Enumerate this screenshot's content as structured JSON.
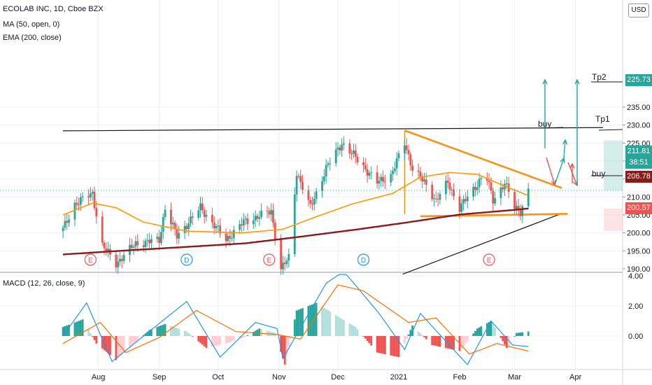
{
  "header": {
    "symbol_line": "ECOLAB INC, 1D, Cboe BZX",
    "ma_line": "MA (50, open, 0)",
    "ema_line": "EMA (200, close)",
    "currency": "USD"
  },
  "macd_header": "MACD (12, 26, close, 9)",
  "price_tags": {
    "tp2": "225.73",
    "last": "211.81",
    "countdown": "38:51",
    "ema": "206.78",
    "stop": "200.57"
  },
  "annotations": {
    "tp2": "Tp2",
    "tp1": "Tp1",
    "buy_upper": "buy",
    "buy_lower": "buy"
  },
  "colors": {
    "up": "#26a69a",
    "down": "#ef5350",
    "ma50": "#ff9800",
    "ema200": "#8b1a1a",
    "trend": "#f7931a",
    "macd_line": "#2196f3",
    "signal_line": "#ff6d00",
    "tag_tp2": "#26a69a",
    "tag_last": "#26a69a",
    "tag_ema": "#b71c1c",
    "tag_stop": "#ef5350"
  },
  "chart_data": [
    {
      "type": "candlestick",
      "title": "ECOLAB INC, 1D, Cboe BZX",
      "ylim": [
        188.5,
        240
      ],
      "y_ticks": [
        "190.00",
        "195.00",
        "200.00",
        "205.00",
        "210.00",
        "215.00",
        "220.00",
        "225.00",
        "230.00",
        "235.00"
      ],
      "x_ticks": [
        "Aug",
        "Sep",
        "Oct",
        "Nov",
        "Dec",
        "2021",
        "Feb",
        "Mar",
        "Apr"
      ],
      "price_key_points": [
        {
          "date": "Jul 14",
          "price": 201
        },
        {
          "date": "Jul 20",
          "price": 208
        },
        {
          "date": "Jul 29",
          "price": 211
        },
        {
          "date": "Aug 3",
          "price": 196.5
        },
        {
          "date": "Aug 10",
          "price": 191.5
        },
        {
          "date": "Aug 20",
          "price": 197
        },
        {
          "date": "Sep 1",
          "price": 198
        },
        {
          "date": "Sep 4",
          "price": 207
        },
        {
          "date": "Sep 10",
          "price": 199
        },
        {
          "date": "Sep 22",
          "price": 207
        },
        {
          "date": "Oct 5",
          "price": 198
        },
        {
          "date": "Oct 14",
          "price": 203
        },
        {
          "date": "Oct 28",
          "price": 206
        },
        {
          "date": "Nov 2",
          "price": 190
        },
        {
          "date": "Nov 6",
          "price": 193
        },
        {
          "date": "Nov 10",
          "price": 217
        },
        {
          "date": "Nov 17",
          "price": 207
        },
        {
          "date": "Nov 25",
          "price": 218
        },
        {
          "date": "Dec 3",
          "price": 225
        },
        {
          "date": "Dec 10",
          "price": 221
        },
        {
          "date": "Dec 21",
          "price": 214
        },
        {
          "date": "Dec 28",
          "price": 216
        },
        {
          "date": "Jan 4",
          "price": 225
        },
        {
          "date": "Jan 8",
          "price": 218
        },
        {
          "date": "Jan 14",
          "price": 214
        },
        {
          "date": "Jan 20",
          "price": 209
        },
        {
          "date": "Jan 26",
          "price": 214
        },
        {
          "date": "Feb 1",
          "price": 207
        },
        {
          "date": "Feb 8",
          "price": 212
        },
        {
          "date": "Feb 14",
          "price": 217
        },
        {
          "date": "Feb 18",
          "price": 209
        },
        {
          "date": "Feb 24",
          "price": 214
        },
        {
          "date": "Mar 1",
          "price": 207
        },
        {
          "date": "Mar 4",
          "price": 206
        },
        {
          "date": "Mar 8",
          "price": 211.81
        }
      ],
      "series": [
        {
          "name": "MA (50, open, 0)",
          "points": [
            {
              "date": "Jul 14",
              "price": 205
            },
            {
              "date": "Jul 29",
              "price": 208.3
            },
            {
              "date": "Aug 10",
              "price": 207
            },
            {
              "date": "Aug 24",
              "price": 203
            },
            {
              "date": "Sep 15",
              "price": 200.5
            },
            {
              "date": "Oct 13",
              "price": 200
            },
            {
              "date": "Nov 3",
              "price": 201
            },
            {
              "date": "Nov 20",
              "price": 204.5
            },
            {
              "date": "Dec 8",
              "price": 208
            },
            {
              "date": "Dec 29",
              "price": 211
            },
            {
              "date": "Jan 12",
              "price": 215.5
            },
            {
              "date": "Jan 27",
              "price": 216.8
            },
            {
              "date": "Feb 10",
              "price": 216.3
            },
            {
              "date": "Feb 24",
              "price": 213
            },
            {
              "date": "Mar 8",
              "price": 210.4
            }
          ]
        },
        {
          "name": "EMA (200, close)",
          "points": [
            {
              "date": "Jul 14",
              "price": 194
            },
            {
              "date": "Aug 15",
              "price": 195.1
            },
            {
              "date": "Sep 15",
              "price": 196.1
            },
            {
              "date": "Oct 15",
              "price": 197.1
            },
            {
              "date": "Nov 10",
              "price": 198.8
            },
            {
              "date": "Dec 10",
              "price": 200.9
            },
            {
              "date": "Jan 4",
              "price": 202.8
            },
            {
              "date": "Feb 1",
              "price": 205.1
            },
            {
              "date": "Mar 1",
              "price": 206.4
            },
            {
              "date": "Mar 8",
              "price": 206.78
            }
          ]
        }
      ],
      "trendlines": [
        {
          "name": "upper black line",
          "from": {
            "date": "Jul 14",
            "price": 228.4
          },
          "to": {
            "date": "Apr 15",
            "price": 229.3
          }
        },
        {
          "name": "lower black line",
          "from": {
            "date": "Jan 3",
            "price": 188.5
          },
          "to": {
            "date": "Mar 25",
            "price": 205.4
          }
        },
        {
          "name": "descending orange line",
          "from": {
            "date": "Jan 4",
            "price": 228.5
          },
          "to": {
            "date": "Mar 25",
            "price": 212.5
          }
        },
        {
          "name": "horizontal orange support",
          "from": {
            "date": "Jan 12",
            "price": 204.6
          },
          "to": {
            "date": "Mar 28",
            "price": 205.3
          }
        },
        {
          "name": "vertical orange line",
          "from": {
            "date": "Jan 4",
            "price": 228.5
          },
          "to": {
            "date": "Jan 4",
            "price": 205.2
          }
        }
      ],
      "markers": [
        {
          "label": "E",
          "date": "Jul 28"
        },
        {
          "label": "D",
          "date": "Sep 15"
        },
        {
          "label": "E",
          "date": "Oct 27"
        },
        {
          "label": "D",
          "date": "Dec 14"
        },
        {
          "label": "E",
          "date": "Feb 16"
        }
      ]
    },
    {
      "type": "bar",
      "title": "MACD (12, 26, close, 9)",
      "ylim": [
        -2,
        4.1
      ],
      "y_ticks": [
        "4.00",
        "2.00",
        "0.00"
      ],
      "histogram_key_points": [
        {
          "date": "Jul 14",
          "value": 0.6
        },
        {
          "date": "Jul 24",
          "value": 1.1
        },
        {
          "date": "Jul 31",
          "value": -0.5
        },
        {
          "date": "Aug 10",
          "value": -1.6
        },
        {
          "date": "Aug 20",
          "value": -0.4
        },
        {
          "date": "Aug 27",
          "value": 0.4
        },
        {
          "date": "Sep 4",
          "value": 0.8
        },
        {
          "date": "Sep 15",
          "value": 0.3
        },
        {
          "date": "Sep 25",
          "value": -0.8
        },
        {
          "date": "Oct 5",
          "value": -0.5
        },
        {
          "date": "Oct 14",
          "value": -0.1
        },
        {
          "date": "Oct 22",
          "value": 0.5
        },
        {
          "date": "Oct 30",
          "value": 0.2
        },
        {
          "date": "Nov 4",
          "value": -1.9
        },
        {
          "date": "Nov 10",
          "value": 1.7
        },
        {
          "date": "Nov 20",
          "value": 2.2
        },
        {
          "date": "Dec 1",
          "value": 1.3
        },
        {
          "date": "Dec 10",
          "value": 0.6
        },
        {
          "date": "Dec 21",
          "value": -1.1
        },
        {
          "date": "Jan 1",
          "value": -1.4
        },
        {
          "date": "Jan 8",
          "value": 0.7
        },
        {
          "date": "Jan 18",
          "value": -0.6
        },
        {
          "date": "Feb 1",
          "value": -1.0
        },
        {
          "date": "Feb 10",
          "value": 0.5
        },
        {
          "date": "Feb 17",
          "value": 1.0
        },
        {
          "date": "Feb 25",
          "value": -0.8
        },
        {
          "date": "Mar 2",
          "value": 0.2
        },
        {
          "date": "Mar 8",
          "value": 0.3
        }
      ],
      "series": [
        {
          "name": "MACD",
          "points": [
            {
              "date": "Jul 14",
              "value": 0
            },
            {
              "date": "Jul 26",
              "value": 2.2
            },
            {
              "date": "Aug 8",
              "value": -1.7
            },
            {
              "date": "Aug 25",
              "value": 0.1
            },
            {
              "date": "Sep 15",
              "value": 2.3
            },
            {
              "date": "Oct 2",
              "value": -1.4
            },
            {
              "date": "Oct 20",
              "value": 0.9
            },
            {
              "date": "Oct 31",
              "value": 0.5
            },
            {
              "date": "Nov 3",
              "value": -1.5
            },
            {
              "date": "Nov 25",
              "value": 3.5
            },
            {
              "date": "Dec 4",
              "value": 4.3
            },
            {
              "date": "Dec 22",
              "value": 1.5
            },
            {
              "date": "Jan 4",
              "value": -0.9
            },
            {
              "date": "Jan 12",
              "value": 1.5
            },
            {
              "date": "Feb 5",
              "value": -1.9
            },
            {
              "date": "Feb 17",
              "value": 1.0
            },
            {
              "date": "Feb 28",
              "value": -0.6
            },
            {
              "date": "Mar 8",
              "value": -0.7
            }
          ]
        },
        {
          "name": "Signal",
          "points": [
            {
              "date": "Jul 14",
              "value": -0.5
            },
            {
              "date": "Aug 2",
              "value": 0.9
            },
            {
              "date": "Aug 15",
              "value": -1.1
            },
            {
              "date": "Sep 1",
              "value": -0.1
            },
            {
              "date": "Sep 20",
              "value": 1.7
            },
            {
              "date": "Oct 10",
              "value": 0.3
            },
            {
              "date": "Oct 31",
              "value": 0.1
            },
            {
              "date": "Nov 12",
              "value": -0.2
            },
            {
              "date": "Dec 1",
              "value": 3.4
            },
            {
              "date": "Dec 14",
              "value": 3.0
            },
            {
              "date": "Jan 6",
              "value": 0.9
            },
            {
              "date": "Jan 20",
              "value": 1.2
            },
            {
              "date": "Feb 6",
              "value": -1.2
            },
            {
              "date": "Feb 20",
              "value": -0.5
            },
            {
              "date": "Mar 8",
              "value": -1.0
            }
          ]
        }
      ]
    }
  ]
}
